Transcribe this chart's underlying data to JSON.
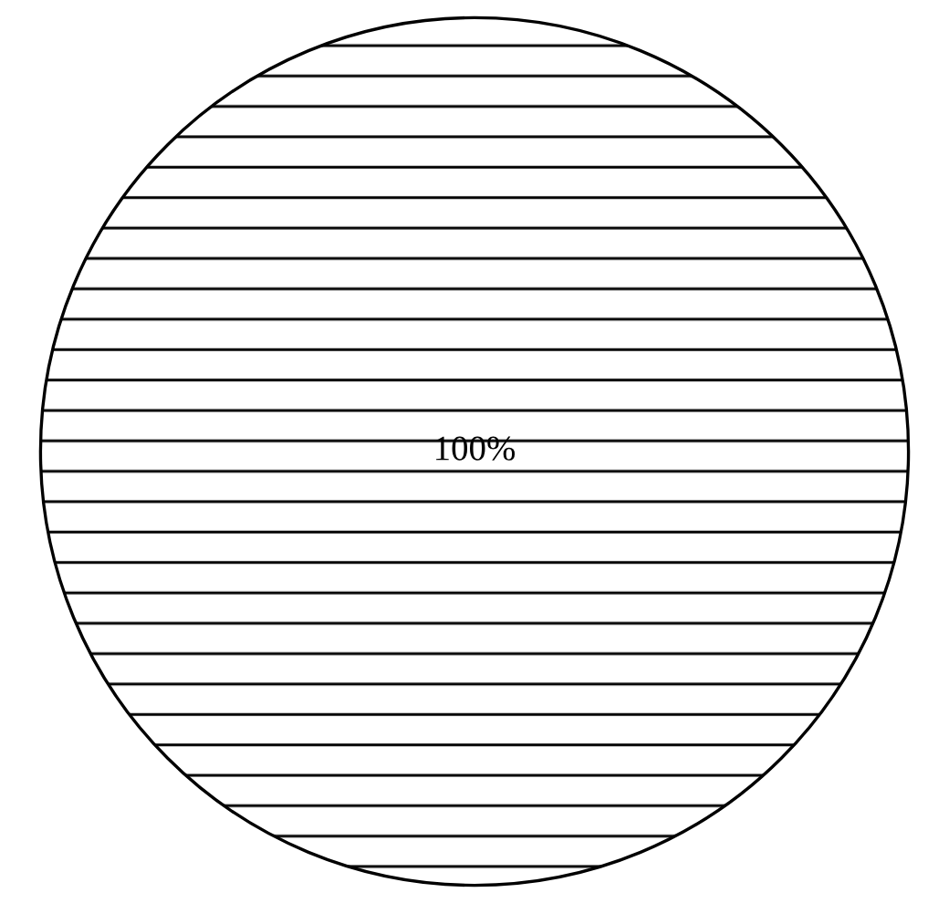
{
  "chart_data": {
    "type": "pie",
    "categories": [
      null
    ],
    "values": [
      100
    ],
    "colors": [
      "#ffffff"
    ],
    "value_labels": [
      "100%"
    ]
  }
}
